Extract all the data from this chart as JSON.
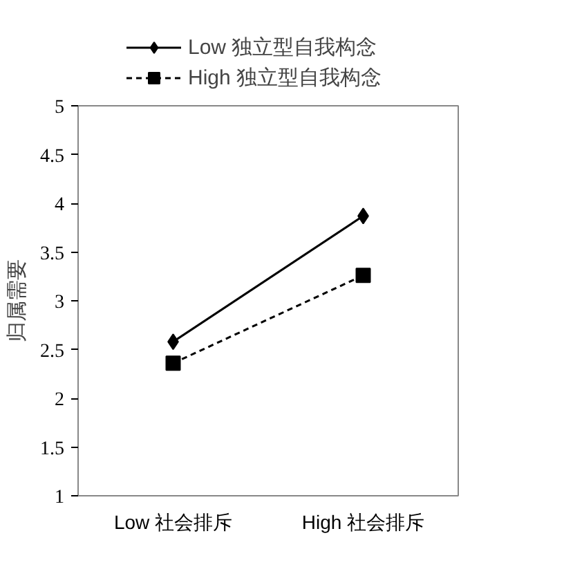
{
  "chart_data": {
    "type": "line",
    "ylabel": "归属需要",
    "categories": [
      "Low 社会排斥",
      "High 社会排斥"
    ],
    "series": [
      {
        "name": "Low 独立型自我构念",
        "color": "#000000",
        "values": [
          2.58,
          3.87
        ],
        "marker": "diamond",
        "line_style": "solid"
      },
      {
        "name": "High 独立型自我构念",
        "color": "#000000",
        "values": [
          2.36,
          3.26
        ],
        "marker": "square",
        "line_style": "dashed"
      }
    ],
    "ylim": [
      1,
      5
    ],
    "yticks": [
      1,
      {
        "value": 1.5,
        "label": "1.5"
      },
      2,
      {
        "value": 2.5,
        "label": "2.5"
      },
      3,
      {
        "value": 3.5,
        "label": "3.5"
      },
      4,
      {
        "value": 4.5,
        "label": "4.5"
      },
      5
    ],
    "grid": false,
    "legend": "top"
  }
}
